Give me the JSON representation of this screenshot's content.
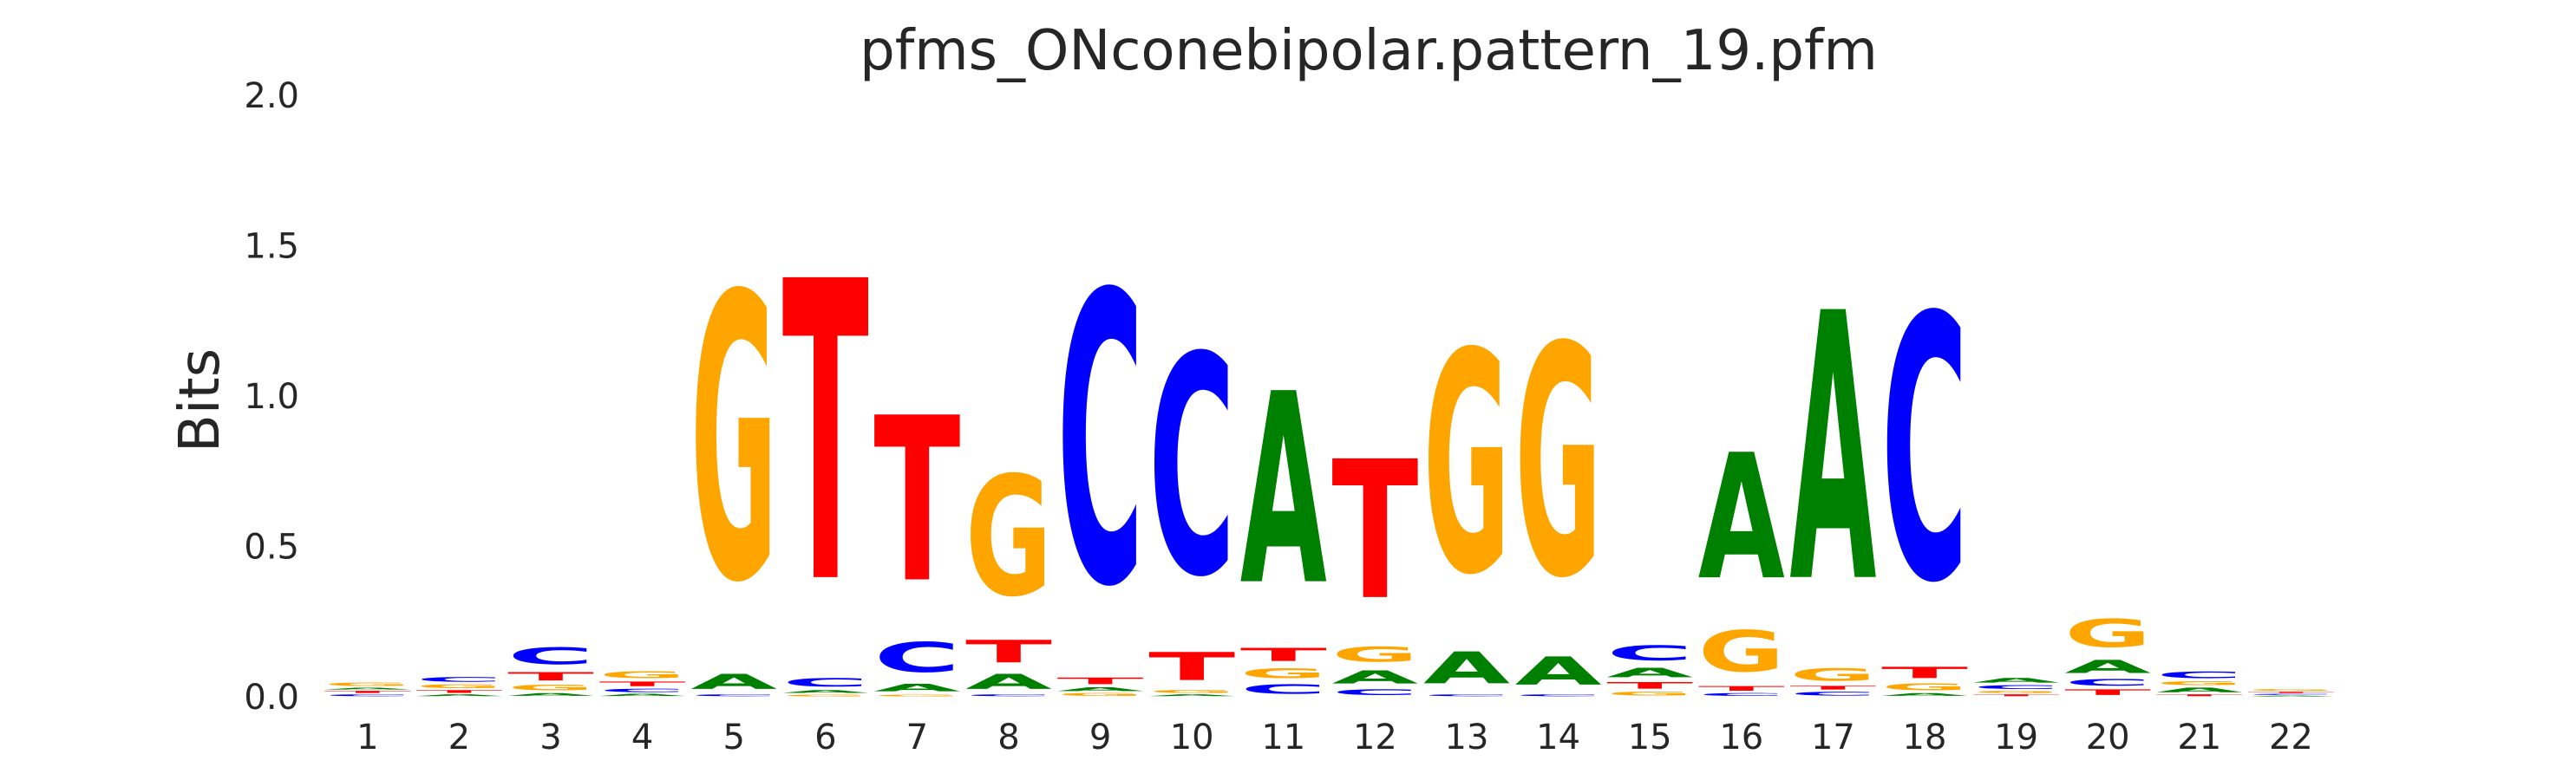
{
  "chart_data": {
    "type": "sequence-logo",
    "title": "pfms_ONconebipolar.pattern_19.pfm",
    "ylabel": "Bits",
    "xlabel": "",
    "ylim": [
      0,
      2.0
    ],
    "yticks": [
      "0.0",
      "0.5",
      "1.0",
      "1.5",
      "2.0"
    ],
    "ytick_values": [
      0,
      0.5,
      1.0,
      1.5,
      2.0
    ],
    "positions": [
      "1",
      "2",
      "3",
      "4",
      "5",
      "6",
      "7",
      "8",
      "9",
      "10",
      "11",
      "12",
      "13",
      "14",
      "15",
      "16",
      "17",
      "18",
      "19",
      "20",
      "21",
      "22"
    ],
    "grid": false,
    "legend": "none",
    "colors": {
      "A": "#008000",
      "C": "#0000ff",
      "G": "#ffa500",
      "T": "#ff0000"
    },
    "columns": [
      [
        [
          "C",
          0.01
        ],
        [
          "T",
          0.012
        ],
        [
          "A",
          0.01
        ],
        [
          "G",
          0.018
        ]
      ],
      [
        [
          "A",
          0.01
        ],
        [
          "T",
          0.015
        ],
        [
          "G",
          0.02
        ],
        [
          "C",
          0.025
        ]
      ],
      [
        [
          "A",
          0.015
        ],
        [
          "G",
          0.03
        ],
        [
          "T",
          0.045
        ],
        [
          "C",
          0.09
        ]
      ],
      [
        [
          "A",
          0.012
        ],
        [
          "C",
          0.018
        ],
        [
          "T",
          0.025
        ],
        [
          "G",
          0.035
        ]
      ],
      [
        [
          "C",
          0.01
        ],
        [
          "A",
          0.08
        ],
        [
          "G",
          1.52
        ]
      ],
      [
        [
          "G",
          0.01
        ],
        [
          "A",
          0.015
        ],
        [
          "C",
          0.045
        ],
        [
          "T",
          1.6
        ]
      ],
      [
        [
          "G",
          0.01
        ],
        [
          "A",
          0.04
        ],
        [
          "C",
          0.16
        ],
        [
          "T",
          0.88
        ]
      ],
      [
        [
          "C",
          0.01
        ],
        [
          "A",
          0.08
        ],
        [
          "T",
          0.12
        ],
        [
          "G",
          0.64
        ]
      ],
      [
        [
          "G",
          0.015
        ],
        [
          "A",
          0.02
        ],
        [
          "T",
          0.035
        ],
        [
          "C",
          1.55
        ]
      ],
      [
        [
          "A",
          0.01
        ],
        [
          "G",
          0.015
        ],
        [
          "T",
          0.15
        ],
        [
          "C",
          1.17
        ]
      ],
      [
        [
          "C",
          0.05
        ],
        [
          "G",
          0.055
        ],
        [
          "T",
          0.07
        ],
        [
          "A",
          1.02
        ]
      ],
      [
        [
          "C",
          0.03
        ],
        [
          "A",
          0.07
        ],
        [
          "G",
          0.08
        ],
        [
          "T",
          0.74
        ]
      ],
      [
        [
          "C",
          0.01
        ],
        [
          "A",
          0.17
        ],
        [
          "G",
          1.18
        ]
      ],
      [
        [
          "C",
          0.01
        ],
        [
          "A",
          0.15
        ],
        [
          "G",
          1.23
        ]
      ],
      [
        [
          "G",
          0.02
        ],
        [
          "T",
          0.035
        ],
        [
          "A",
          0.05
        ],
        [
          "C",
          0.08
        ]
      ],
      [
        [
          "C",
          0.015
        ],
        [
          "T",
          0.025
        ],
        [
          "G",
          0.22
        ],
        [
          "A",
          0.67
        ]
      ],
      [
        [
          "C",
          0.02
        ],
        [
          "T",
          0.02
        ],
        [
          "G",
          0.065
        ],
        [
          "A",
          1.43
        ]
      ],
      [
        [
          "A",
          0.015
        ],
        [
          "G",
          0.035
        ],
        [
          "T",
          0.06
        ],
        [
          "C",
          1.41
        ]
      ],
      [
        [
          "T",
          0.01
        ],
        [
          "G",
          0.012
        ],
        [
          "C",
          0.02
        ],
        [
          "A",
          0.025
        ]
      ],
      [
        [
          "T",
          0.03
        ],
        [
          "C",
          0.035
        ],
        [
          "A",
          0.07
        ],
        [
          "G",
          0.15
        ]
      ],
      [
        [
          "T",
          0.01
        ],
        [
          "A",
          0.025
        ],
        [
          "G",
          0.02
        ],
        [
          "C",
          0.035
        ]
      ],
      [
        [
          "A",
          0.005
        ],
        [
          "C",
          0.006
        ],
        [
          "T",
          0.007
        ],
        [
          "G",
          0.008
        ]
      ]
    ]
  }
}
